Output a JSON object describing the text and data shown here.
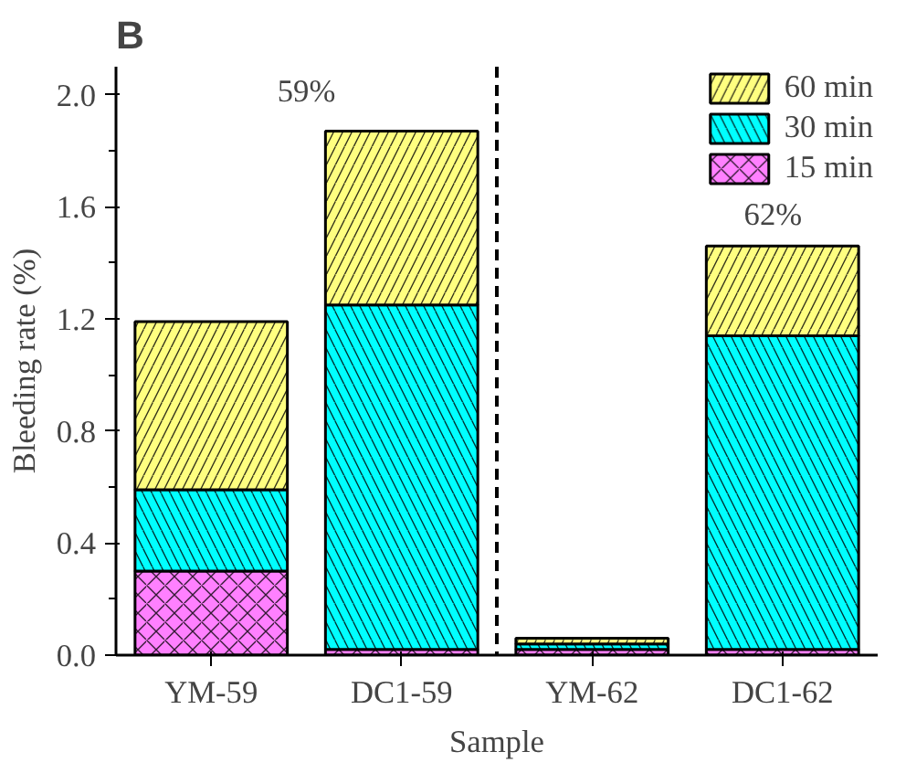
{
  "chart_data": {
    "type": "bar",
    "stacked": true,
    "title": "B",
    "xlabel": "Sample",
    "ylabel": "Bleeding rate (%)",
    "categories": [
      "YM-59",
      "DC1-59",
      "YM-62",
      "DC1-62"
    ],
    "series": [
      {
        "name": "15 min",
        "color": "#ff80ff",
        "values": [
          0.3,
          0.02,
          0.02,
          0.02
        ]
      },
      {
        "name": "30 min",
        "color": "#00ffff",
        "values": [
          0.29,
          1.23,
          0.02,
          1.12
        ]
      },
      {
        "name": "60 min",
        "color": "#ffff80",
        "values": [
          0.6,
          0.62,
          0.02,
          0.32
        ]
      }
    ],
    "ylim": [
      0,
      2.1
    ],
    "yticks": [
      {
        "value": 0,
        "label": "0.0"
      },
      {
        "value": 0.2,
        "label": null
      },
      {
        "value": 0.4,
        "label": "0.4"
      },
      {
        "value": 0.6,
        "label": null
      },
      {
        "value": 0.8,
        "label": "0.8"
      },
      {
        "value": 1.0,
        "label": null
      },
      {
        "value": 1.2,
        "label": "1.2"
      },
      {
        "value": 1.4,
        "label": null
      },
      {
        "value": 1.6,
        "label": "1.6"
      },
      {
        "value": 1.8,
        "label": null
      },
      {
        "value": 2.0,
        "label": "2.0"
      }
    ],
    "annotations": [
      "59%",
      "62%"
    ],
    "legend": "top right",
    "grid": false
  }
}
